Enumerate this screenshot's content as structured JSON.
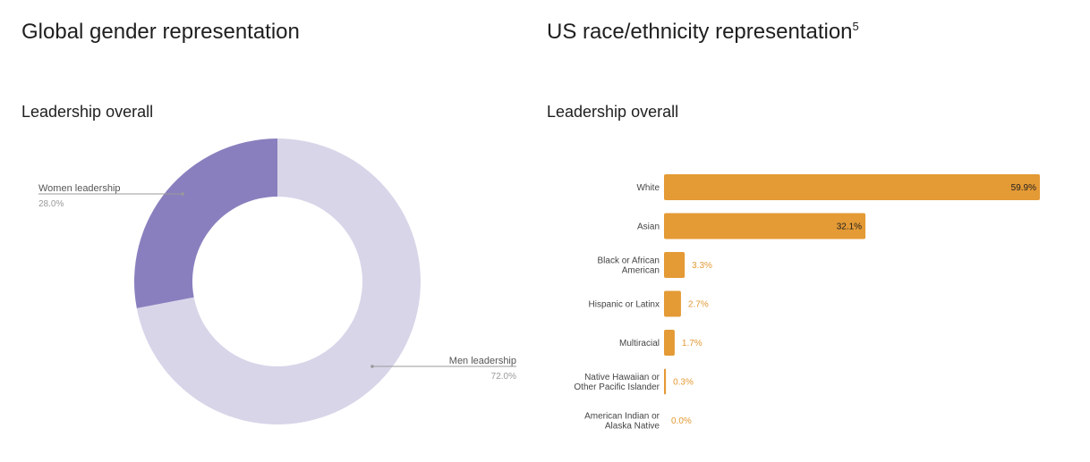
{
  "left": {
    "title": "Global gender representation",
    "subtitle": "Leadership overall"
  },
  "right": {
    "title": "US race/ethnicity representation",
    "title_superscript": "5",
    "subtitle": "Leadership overall"
  },
  "chart_data": [
    {
      "type": "pie",
      "variant": "donut",
      "title": "Global gender representation",
      "subtitle": "Leadership overall",
      "categories": [
        "Women leadership",
        "Men leadership"
      ],
      "values": [
        28.0,
        72.0
      ],
      "value_labels": [
        "28.0%",
        "72.0%"
      ],
      "colors": [
        "#8a7fbe",
        "#d8d5e9"
      ]
    },
    {
      "type": "bar",
      "orientation": "horizontal",
      "title": "US race/ethnicity representation",
      "subtitle": "Leadership overall",
      "categories": [
        "White",
        "Asian",
        "Black or African American",
        "Hispanic or Latinx",
        "Multiracial",
        "Native Hawaiian or Other Pacific Islander",
        "American Indian or Alaska Native"
      ],
      "category_lines": [
        [
          "White"
        ],
        [
          "Asian"
        ],
        [
          "Black or African",
          "American"
        ],
        [
          "Hispanic or Latinx"
        ],
        [
          "Multiracial"
        ],
        [
          "Native Hawaiian or",
          "Other Pacific Islander"
        ],
        [
          "American Indian or",
          "Alaska Native"
        ]
      ],
      "values": [
        59.9,
        32.1,
        3.3,
        2.7,
        1.7,
        0.3,
        0.0
      ],
      "value_labels": [
        "59.9%",
        "32.1%",
        "3.3%",
        "2.7%",
        "1.7%",
        "0.3%",
        "0.0%"
      ],
      "xlim": [
        0,
        59.9
      ],
      "bar_color": "#e49a35",
      "label_color_outside": "#e49a35",
      "label_color_inside": "#1f1f1f"
    }
  ]
}
